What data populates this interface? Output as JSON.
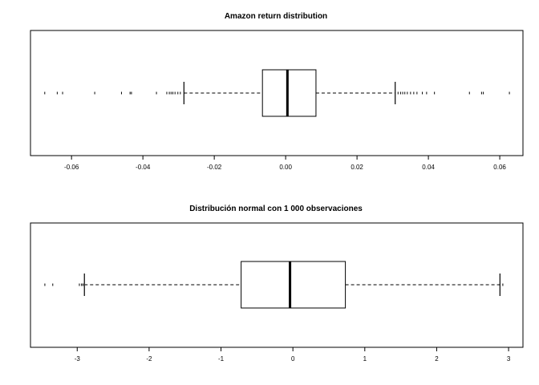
{
  "chart_data": [
    {
      "type": "boxplot",
      "orientation": "horizontal",
      "title": "Amazon return distribution",
      "xlabel": "",
      "ylabel": "",
      "xlim": [
        -0.0715,
        0.0665
      ],
      "ticks": [
        -0.06,
        -0.04,
        -0.02,
        0.0,
        0.02,
        0.04,
        0.06
      ],
      "tick_labels": [
        "-0.06",
        "-0.04",
        "-0.02",
        "0.00",
        "0.02",
        "0.04",
        "0.06"
      ],
      "whisker_low": -0.0285,
      "q1": -0.0065,
      "median": 0.0005,
      "q3": 0.0085,
      "whisker_high": 0.0307,
      "outliers": [
        -0.0675,
        -0.064,
        -0.0625,
        -0.0535,
        -0.046,
        -0.0436,
        -0.0432,
        -0.0362,
        -0.0333,
        -0.0326,
        -0.0321,
        -0.0316,
        -0.031,
        -0.0302,
        -0.0295,
        0.0315,
        0.0322,
        0.0328,
        0.0334,
        0.0341,
        0.035,
        0.0359,
        0.0368,
        0.0383,
        0.0395,
        0.0417,
        0.0515,
        0.0549,
        0.0554,
        0.0627
      ]
    },
    {
      "type": "boxplot",
      "orientation": "horizontal",
      "title": "Distribución normal con 1 000 observaciones",
      "xlabel": "",
      "ylabel": "",
      "xlim": [
        -3.65,
        3.2
      ],
      "ticks": [
        -3,
        -2,
        -1,
        0,
        1,
        2,
        3
      ],
      "tick_labels": [
        "-3",
        "-2",
        "-1",
        "0",
        "1",
        "2",
        "3"
      ],
      "whisker_low": -2.9,
      "q1": -0.72,
      "median": -0.04,
      "q3": 0.73,
      "whisker_high": 2.88,
      "outliers": [
        -3.45,
        -3.34,
        -2.97,
        -2.94,
        -2.92,
        2.92
      ]
    }
  ]
}
